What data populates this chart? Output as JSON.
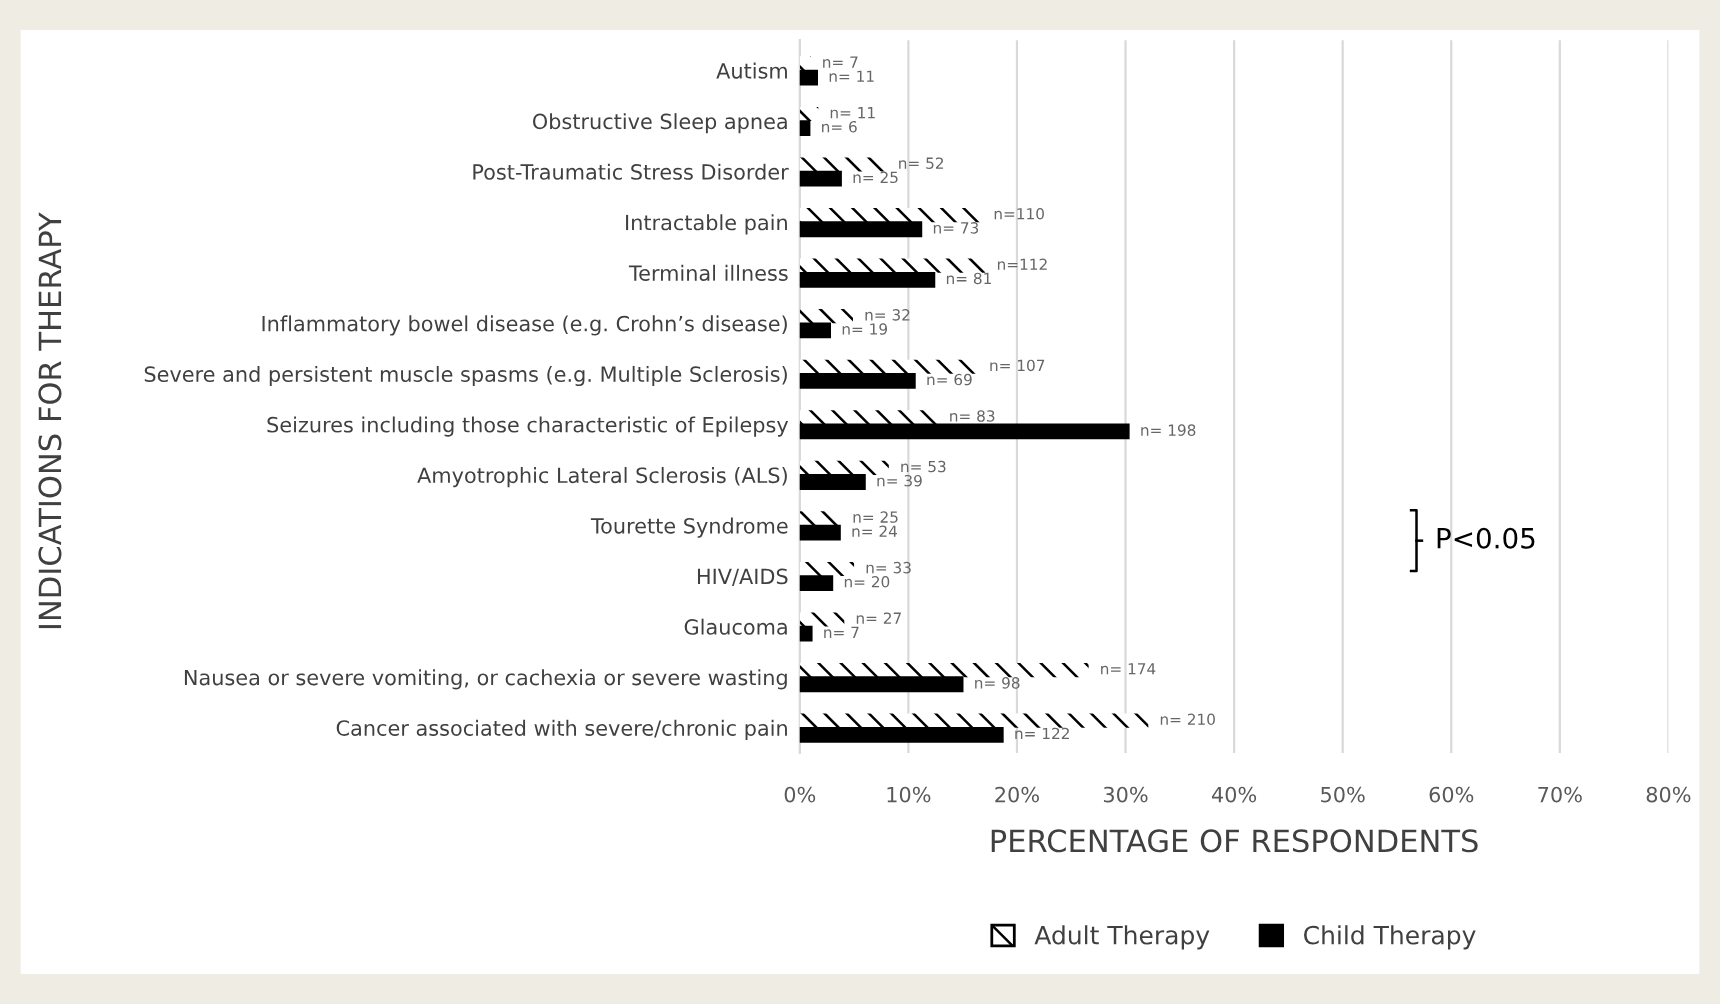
{
  "chart_data": {
    "type": "bar",
    "orientation": "horizontal",
    "xlabel": "PERCENTAGE OF RESPONDENTS",
    "ylabel": "INDICATIONS FOR THERAPY",
    "categories": [
      "Autism",
      "Obstructive Sleep apnea",
      "Post-Traumatic Stress Disorder",
      "Intractable pain",
      "Terminal illness",
      "Inflammatory bowel disease (e.g. Crohn’s disease)",
      "Severe and persistent muscle spasms (e.g. Multiple Sclerosis)",
      "Seizures including those characteristic of Epilepsy",
      "Amyotrophic Lateral Sclerosis (ALS)",
      "Tourette Syndrome",
      "HIV/AIDS",
      "Glaucoma",
      "Nausea or severe vomiting, or cachexia or severe wasting",
      "Cancer associated with severe/chronic pain"
    ],
    "series": [
      {
        "name": "Adult Therapy",
        "color": "#ffffff",
        "values": [
          1.0,
          1.7,
          8.0,
          16.8,
          17.1,
          4.9,
          16.4,
          12.7,
          8.2,
          3.8,
          5.0,
          4.1,
          26.6,
          32.1
        ]
      },
      {
        "name": "Child Therapy",
        "color": "#000000",
        "values": [
          1.6,
          0.9,
          3.8,
          11.2,
          12.4,
          2.8,
          10.6,
          30.3,
          6.0,
          3.7,
          3.0,
          1.1,
          15.0,
          18.7
        ]
      }
    ],
    "xlim": [
      0,
      80
    ],
    "xticks": [
      {
        "value": 0,
        "label": "0%"
      },
      {
        "value": 10,
        "label": "10%"
      },
      {
        "value": 20,
        "label": "20%"
      },
      {
        "value": 30,
        "label": "30%"
      },
      {
        "value": 40,
        "label": "40%"
      },
      {
        "value": 50,
        "label": "50%"
      },
      {
        "value": 60,
        "label": "60%"
      },
      {
        "value": 70,
        "label": "70%"
      },
      {
        "value": 80,
        "label": "80%"
      }
    ],
    "grid": "x",
    "legend": "bottom",
    "annotations": [
      "P<0.05",
      {
        "text": "n= 7",
        "x": 1.0,
        "y": "Autism"
      },
      {
        "text": "n= 11",
        "x": 1.6,
        "y": "Autism"
      },
      {
        "text": "n= 11",
        "x": 1.7,
        "y": "Obstructive Sleep apnea"
      },
      {
        "text": "n= 6",
        "x": 0.9,
        "y": "Obstructive Sleep apnea"
      },
      {
        "text": "n= 52",
        "x": 8.0,
        "y": "Post-Traumatic Stress Disorder"
      },
      {
        "text": "n= 25",
        "x": 3.8,
        "y": "Post-Traumatic Stress Disorder"
      },
      {
        "text": "n=110",
        "x": 16.8,
        "y": "Intractable pain"
      },
      {
        "text": "n= 73",
        "x": 11.2,
        "y": "Intractable pain"
      },
      {
        "text": "n=112",
        "x": 17.1,
        "y": "Terminal illness"
      },
      {
        "text": "n= 81",
        "x": 12.4,
        "y": "Terminal illness"
      },
      {
        "text": "n= 32",
        "x": 4.9,
        "y": "Inflammatory bowel disease (e.g. Crohn’s disease)"
      },
      {
        "text": "n= 19",
        "x": 2.8,
        "y": "Inflammatory bowel disease (e.g. Crohn’s disease)"
      },
      {
        "text": "n= 107",
        "x": 16.4,
        "y": "Severe and persistent muscle spasms (e.g. Multiple Sclerosis)"
      },
      {
        "text": "n= 69",
        "x": 10.6,
        "y": "Severe and persistent muscle spasms (e.g. Multiple Sclerosis)"
      },
      {
        "text": "n= 83",
        "x": 12.7,
        "y": "Seizures including those characteristic of Epilepsy"
      },
      {
        "text": "n= 198",
        "x": 30.3,
        "y": "Seizures including those characteristic of Epilepsy"
      },
      {
        "text": "n= 53",
        "x": 8.2,
        "y": "Amyotrophic Lateral Sclerosis (ALS)"
      },
      {
        "text": "n= 39",
        "x": 6.0,
        "y": "Amyotrophic Lateral Sclerosis (ALS)"
      },
      {
        "text": "n= 25",
        "x": 3.8,
        "y": "Tourette Syndrome"
      },
      {
        "text": "n= 24",
        "x": 3.7,
        "y": "Tourette Syndrome"
      },
      {
        "text": "n= 33",
        "x": 5.0,
        "y": "HIV/AIDS"
      },
      {
        "text": "n= 20",
        "x": 3.0,
        "y": "HIV/AIDS"
      },
      {
        "text": "n= 27",
        "x": 4.1,
        "y": "Glaucoma"
      },
      {
        "text": "n= 7",
        "x": 1.1,
        "y": "Glaucoma"
      },
      {
        "text": "n= 174",
        "x": 26.6,
        "y": "Nausea or severe vomiting, or cachexia or severe wasting"
      },
      {
        "text": "n= 98",
        "x": 15.0,
        "y": "Nausea or severe vomiting, or cachexia or severe wasting"
      },
      {
        "text": "n= 210",
        "x": 32.1,
        "y": "Cancer associated with severe/chronic pain"
      },
      {
        "text": "n= 122",
        "x": 18.7,
        "y": "Cancer associated with severe/chronic pain"
      }
    ]
  }
}
